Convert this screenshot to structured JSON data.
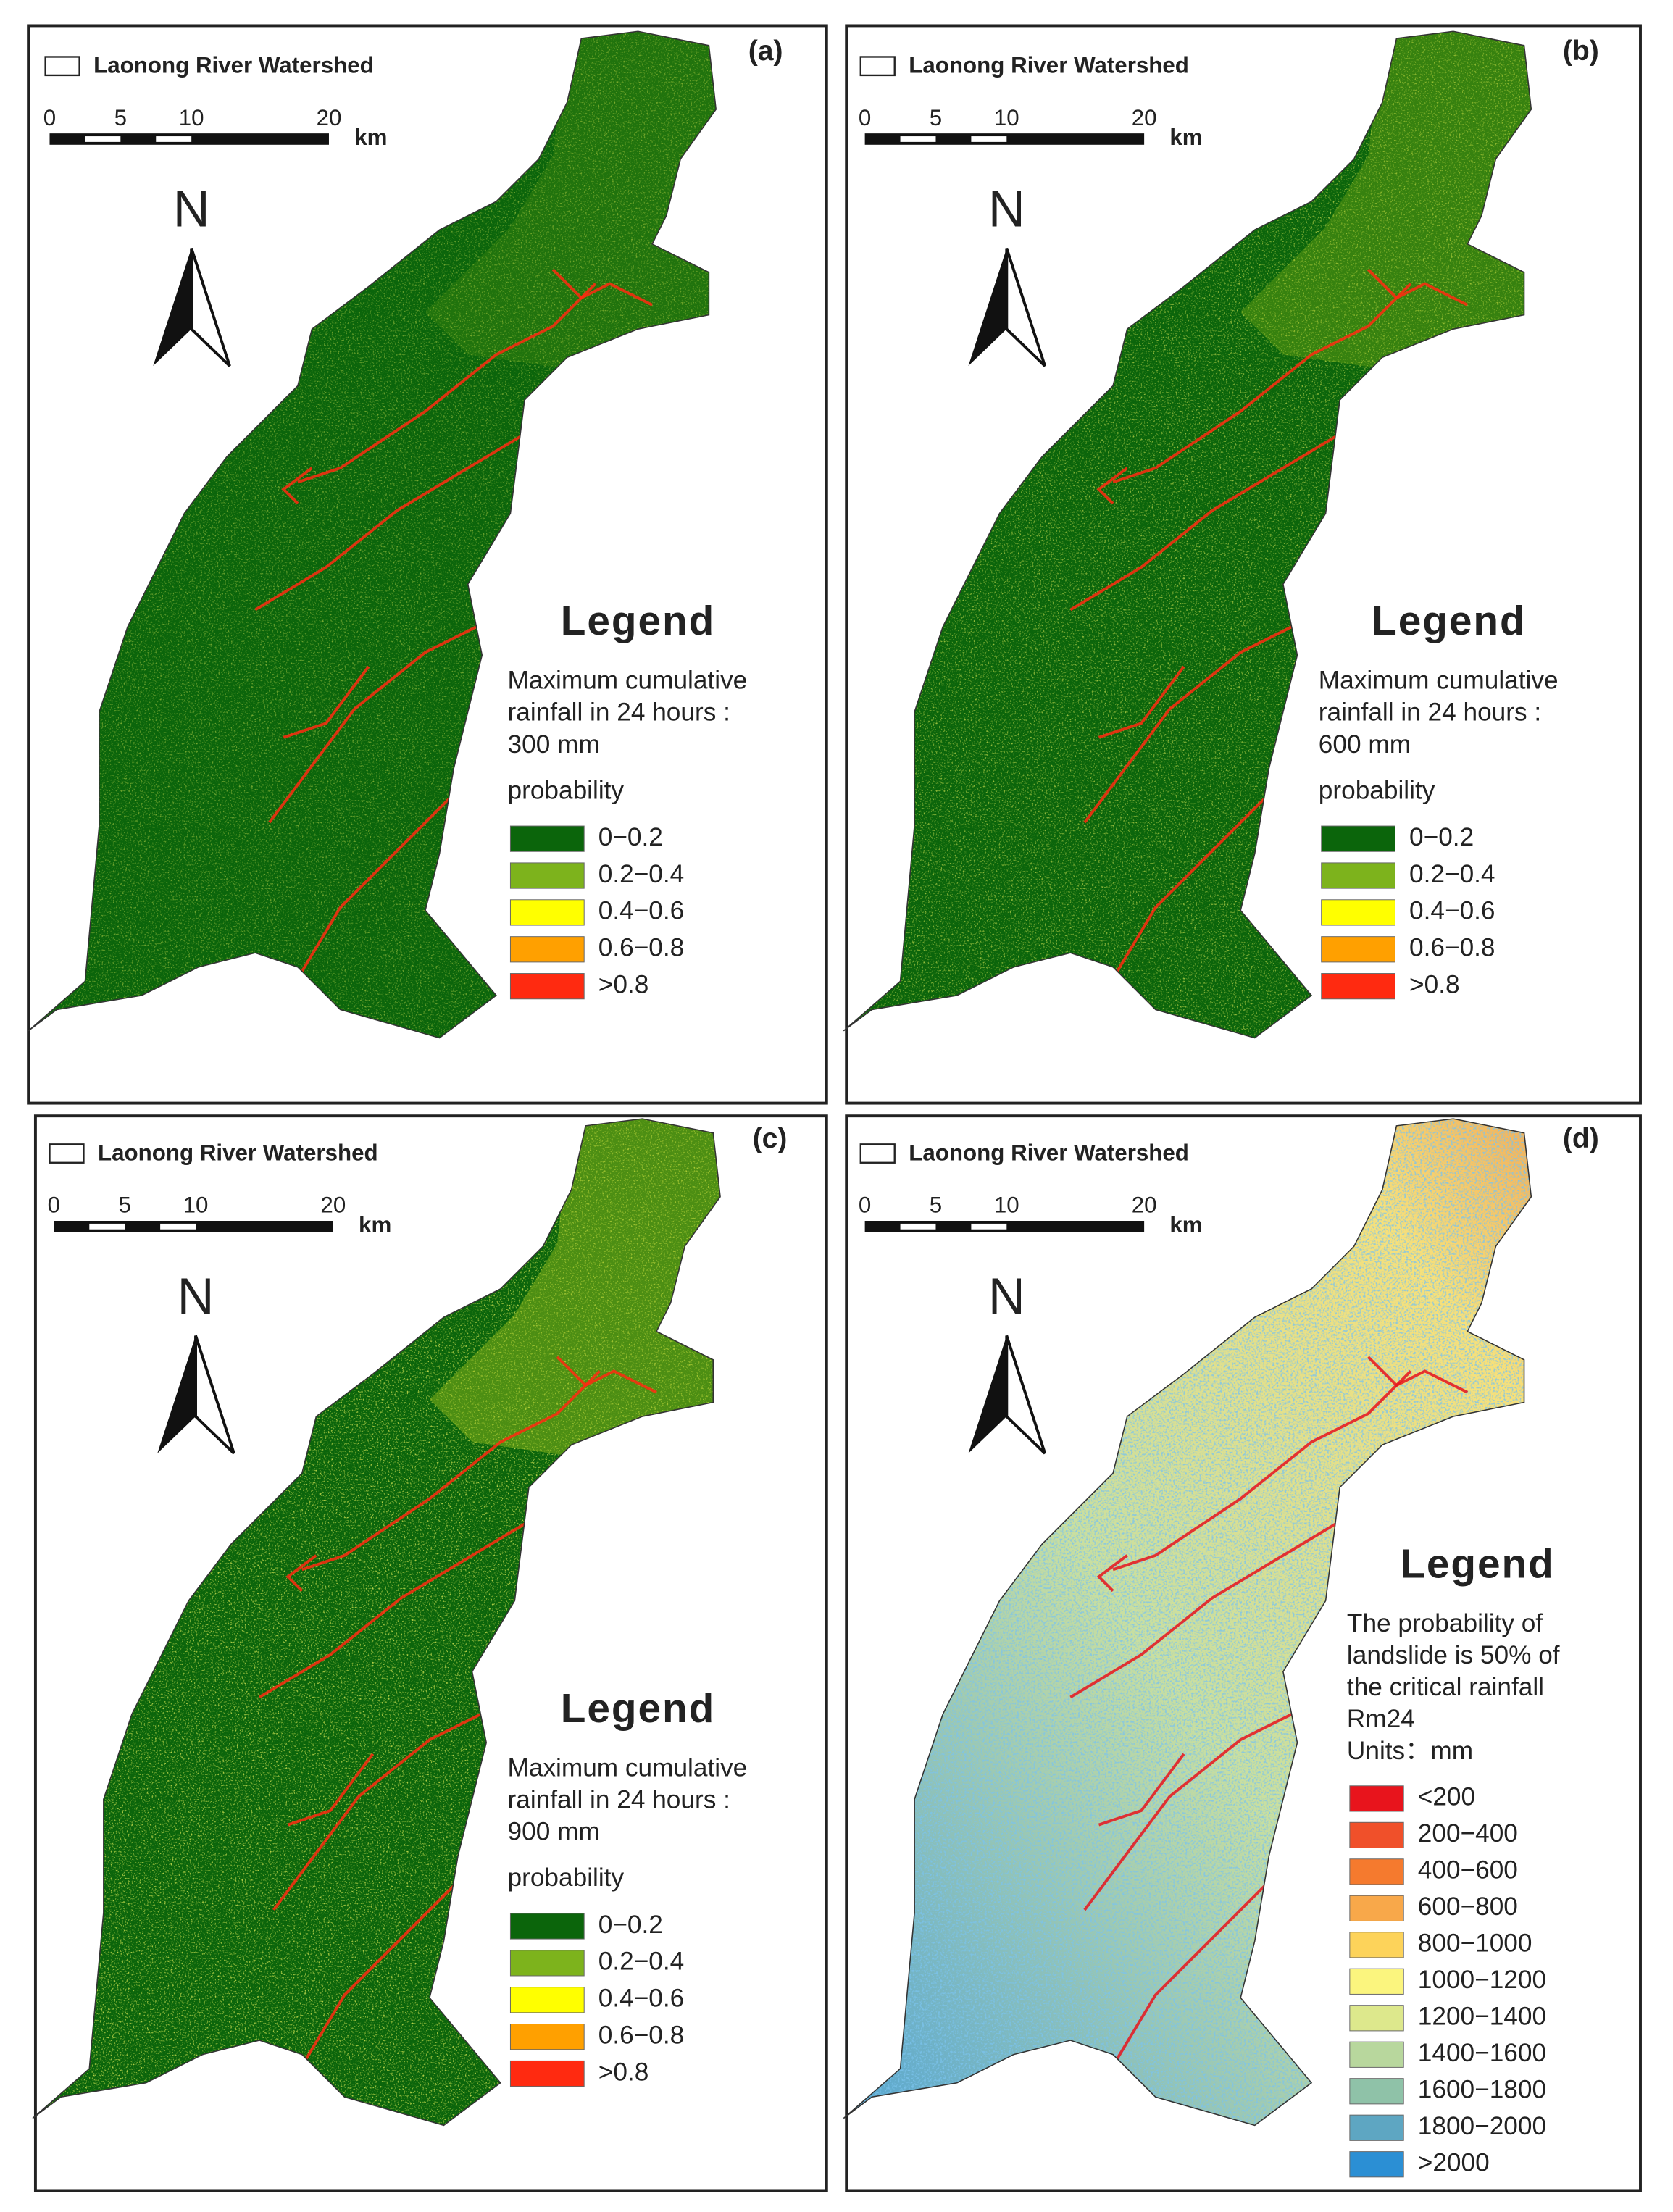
{
  "panels": [
    {
      "label": "(a)",
      "watershed": "Laonong River Watershed",
      "scale": [
        "0",
        "5",
        "10",
        "20"
      ],
      "unit": "km",
      "north": "N",
      "legend": {
        "title": "Legend",
        "description": [
          "Maximum cumulative",
          "rainfall in 24 hours :",
          "300 mm"
        ],
        "subtitle": "probability",
        "items": [
          {
            "label": "0−0.2",
            "color": "#0b650b"
          },
          {
            "label": "0.2−0.4",
            "color": "#7db31c"
          },
          {
            "label": "0.4−0.6",
            "color": "#ffff00"
          },
          {
            "label": "0.6−0.8",
            "color": "#ffa000"
          },
          {
            "label": ">0.8",
            "color": "#ff2a10"
          }
        ]
      }
    },
    {
      "label": "(b)",
      "watershed": "Laonong River Watershed",
      "scale": [
        "0",
        "5",
        "10",
        "20"
      ],
      "unit": "km",
      "north": "N",
      "legend": {
        "title": "Legend",
        "description": [
          "Maximum cumulative",
          "rainfall in 24 hours :",
          "600 mm"
        ],
        "subtitle": "probability",
        "items": [
          {
            "label": "0−0.2",
            "color": "#0b650b"
          },
          {
            "label": "0.2−0.4",
            "color": "#7db31c"
          },
          {
            "label": "0.4−0.6",
            "color": "#ffff00"
          },
          {
            "label": "0.6−0.8",
            "color": "#ffa000"
          },
          {
            "label": ">0.8",
            "color": "#ff2a10"
          }
        ]
      }
    },
    {
      "label": "(c)",
      "watershed": "Laonong River Watershed",
      "scale": [
        "0",
        "5",
        "10",
        "20"
      ],
      "unit": "km",
      "north": "N",
      "legend": {
        "title": "Legend",
        "description": [
          "Maximum cumulative",
          "rainfall in 24 hours :",
          "900 mm"
        ],
        "subtitle": "probability",
        "items": [
          {
            "label": "0−0.2",
            "color": "#0b650b"
          },
          {
            "label": "0.2−0.4",
            "color": "#7db31c"
          },
          {
            "label": "0.4−0.6",
            "color": "#ffff00"
          },
          {
            "label": "0.6−0.8",
            "color": "#ffa000"
          },
          {
            "label": ">0.8",
            "color": "#ff2a10"
          }
        ]
      }
    },
    {
      "label": "(d)",
      "watershed": "Laonong River Watershed",
      "scale": [
        "0",
        "5",
        "10",
        "20"
      ],
      "unit": "km",
      "north": "N",
      "legend": {
        "title": "Legend",
        "description": [
          "The probability of",
          "landslide is 50% of",
          "the critical rainfall",
          "Rm24",
          "Units：mm"
        ],
        "items": [
          {
            "label": "<200",
            "color": "#e8141c"
          },
          {
            "label": "200−400",
            "color": "#f0502a"
          },
          {
            "label": "400−600",
            "color": "#f57a2e"
          },
          {
            "label": "600−800",
            "color": "#f8a84a"
          },
          {
            "label": "800−1000",
            "color": "#fdd35a"
          },
          {
            "label": "1000−1200",
            "color": "#fbf57e"
          },
          {
            "label": "1200−1400",
            "color": "#dde88c"
          },
          {
            "label": "1400−1600",
            "color": "#b8d79d"
          },
          {
            "label": "1600−1800",
            "color": "#8fc2a8"
          },
          {
            "label": "1800−2000",
            "color": "#5ea6c2"
          },
          {
            "label": ">2000",
            "color": "#2b8fd4"
          }
        ]
      }
    }
  ]
}
